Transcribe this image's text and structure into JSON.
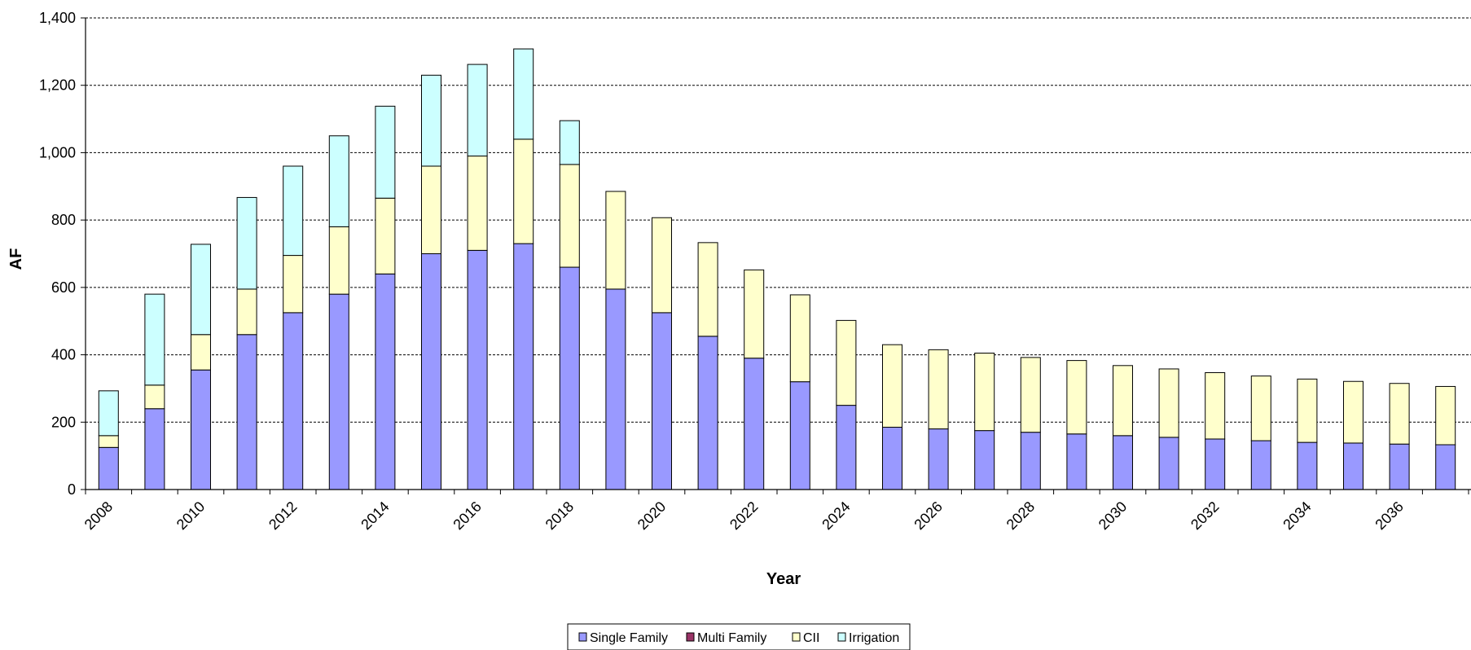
{
  "chart_data": {
    "type": "bar",
    "stacked": true,
    "title": "",
    "xlabel": "Year",
    "ylabel": "AF",
    "ylim": [
      0,
      1400
    ],
    "yticks": [
      0,
      200,
      400,
      600,
      800,
      1000,
      1200,
      1400
    ],
    "ytick_labels": [
      "0",
      "200",
      "400",
      "600",
      "800",
      "1,000",
      "1,200",
      "1,400"
    ],
    "grid": true,
    "legend_position": "bottom",
    "categories": [
      "2008",
      "2009",
      "2010",
      "2011",
      "2012",
      "2013",
      "2014",
      "2015",
      "2016",
      "2017",
      "2018",
      "2019",
      "2020",
      "2021",
      "2022",
      "2023",
      "2024",
      "2025",
      "2026",
      "2027",
      "2028",
      "2029",
      "2030",
      "2031",
      "2032",
      "2033",
      "2034",
      "2035",
      "2036",
      "2037"
    ],
    "xtick_labels": [
      "2008",
      "",
      "2010",
      "",
      "2012",
      "",
      "2014",
      "",
      "2016",
      "",
      "2018",
      "",
      "2020",
      "",
      "2022",
      "",
      "2024",
      "",
      "2026",
      "",
      "2028",
      "",
      "2030",
      "",
      "2032",
      "",
      "2034",
      "",
      "2036",
      ""
    ],
    "series": [
      {
        "name": "Single Family",
        "color": "#9999ff",
        "values": [
          125,
          240,
          355,
          460,
          525,
          580,
          640,
          700,
          710,
          730,
          660,
          595,
          525,
          455,
          390,
          320,
          250,
          185,
          180,
          175,
          170,
          165,
          160,
          155,
          150,
          145,
          140,
          138,
          135,
          133
        ]
      },
      {
        "name": "Multi Family",
        "color": "#993366",
        "values": [
          0,
          0,
          0,
          0,
          0,
          0,
          0,
          0,
          0,
          0,
          0,
          0,
          0,
          0,
          0,
          0,
          0,
          0,
          0,
          0,
          0,
          0,
          0,
          0,
          0,
          0,
          0,
          0,
          0,
          0
        ]
      },
      {
        "name": "CII",
        "color": "#ffffcc",
        "values": [
          35,
          70,
          105,
          135,
          170,
          200,
          225,
          260,
          280,
          310,
          305,
          290,
          282,
          278,
          262,
          258,
          252,
          245,
          235,
          230,
          222,
          218,
          208,
          203,
          197,
          192,
          188,
          183,
          180,
          173
        ]
      },
      {
        "name": "Irrigation",
        "color": "#ccffff",
        "values": [
          133,
          270,
          268,
          272,
          265,
          270,
          273,
          270,
          272,
          268,
          130,
          0,
          0,
          0,
          0,
          0,
          0,
          0,
          0,
          0,
          0,
          0,
          0,
          0,
          0,
          0,
          0,
          0,
          0,
          0
        ]
      }
    ]
  }
}
